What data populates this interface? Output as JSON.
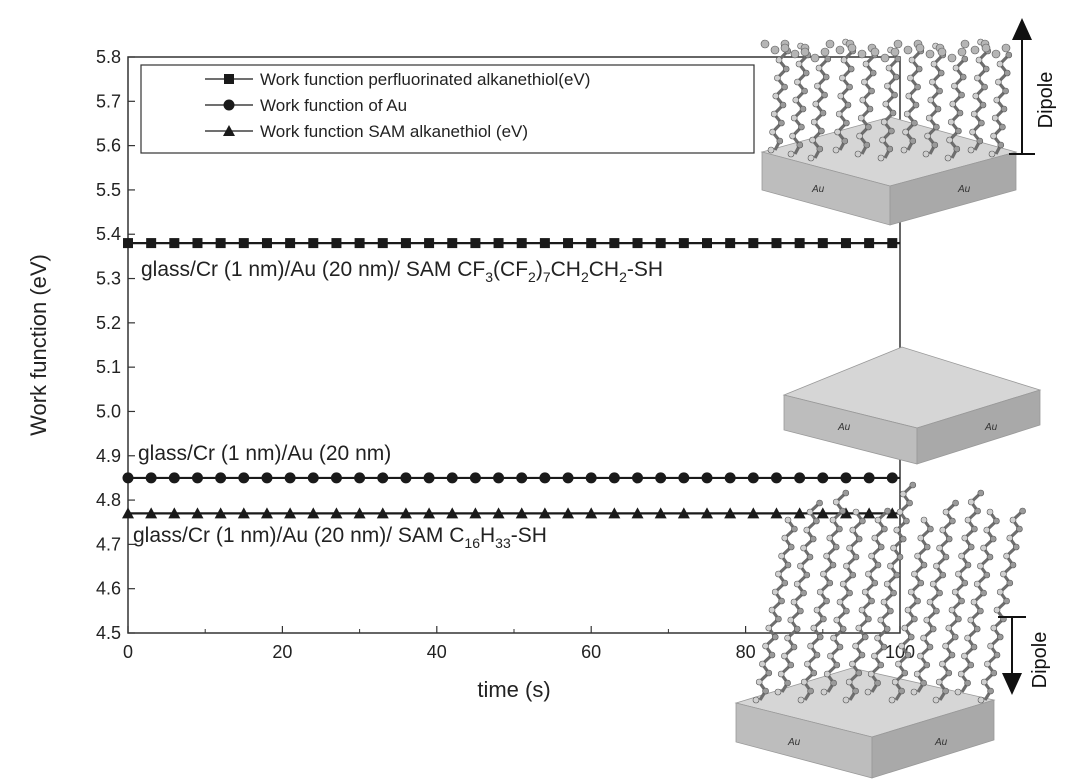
{
  "chart_data": {
    "type": "line",
    "xlabel": "time (s)",
    "ylabel": "Work function (eV)",
    "xlim": [
      0,
      100
    ],
    "ylim": [
      4.5,
      5.8
    ],
    "xticks": [
      0,
      20,
      40,
      60,
      80,
      100
    ],
    "yticks": [
      4.5,
      4.6,
      4.7,
      4.8,
      4.9,
      5.0,
      5.1,
      5.2,
      5.3,
      5.4,
      5.5,
      5.6,
      5.7,
      5.8
    ],
    "ytick_labels": [
      "4.5",
      "4.6",
      "4.7",
      "4.8",
      "4.9",
      "5.0",
      "5.1",
      "5.2",
      "5.3",
      "5.4",
      "5.5",
      "5.6",
      "5.7",
      "5.8"
    ],
    "legend_placement": "top-left",
    "series": [
      {
        "name": "Work function perfluorinated alkanethiol(eV)",
        "marker": "square",
        "x_start": 0,
        "x_end": 100,
        "x_step": 3,
        "value": 5.38
      },
      {
        "name": "Work function of Au",
        "marker": "circle",
        "x_start": 0,
        "x_end": 100,
        "x_step": 3,
        "value": 4.85
      },
      {
        "name": "Work function SAM alkanethiol (eV)",
        "marker": "triangle",
        "x_start": 0,
        "x_end": 100,
        "x_step": 3,
        "value": 4.77
      }
    ],
    "annotations": [
      {
        "parts": [
          [
            "glass/Cr (1 nm)/Au (20 nm)/ SAM CF",
            ""
          ],
          [
            "3",
            "sub"
          ],
          [
            "(CF",
            ""
          ],
          [
            "2",
            "sub"
          ],
          [
            ")",
            ""
          ],
          [
            "7",
            "sub"
          ],
          [
            "CH",
            ""
          ],
          [
            "2",
            "sub"
          ],
          [
            "CH",
            ""
          ],
          [
            "2",
            "sub"
          ],
          [
            "-SH",
            ""
          ]
        ]
      },
      {
        "parts": [
          [
            "glass/Cr (1 nm)/Au (20 nm)",
            ""
          ]
        ]
      },
      {
        "parts": [
          [
            "glass/Cr (1 nm)/Au (20 nm)/ SAM C",
            ""
          ],
          [
            "16",
            "sub"
          ],
          [
            "H",
            ""
          ],
          [
            "33",
            "sub"
          ],
          [
            "-SH",
            ""
          ]
        ]
      }
    ]
  },
  "insets": {
    "substrate_label": "Au",
    "dipole_label": "Dipole"
  },
  "colors": {
    "line": "#1a1a1a",
    "frame": "#333333",
    "slab_top": "#d6d6d6",
    "slab_left": "#bdbdbd",
    "slab_right": "#a9a9a9",
    "molecule": "#6e6e6e"
  }
}
